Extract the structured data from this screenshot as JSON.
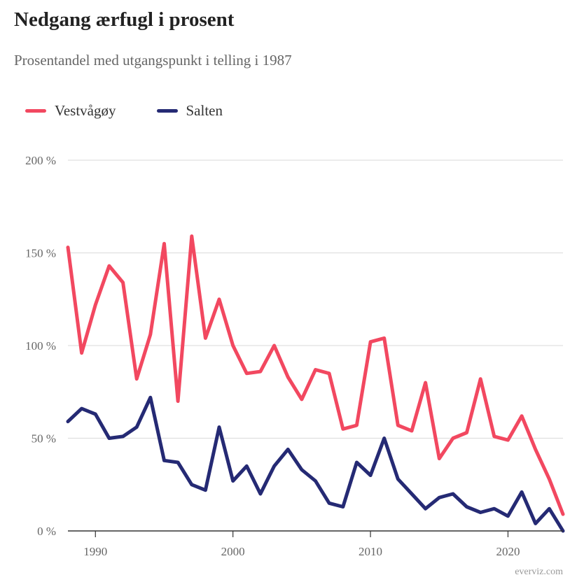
{
  "title": "Nedgang ærfugl i prosent",
  "subtitle": "Prosentandel med utgangspunkt i telling i 1987",
  "credit": "everviz.com",
  "colors": {
    "vestvagoy": "#f24860",
    "salten": "#252a74",
    "grid": "#e0e0e0",
    "axis": "#333333",
    "tick_text": "#666666"
  },
  "legend": {
    "items": [
      {
        "label": "Vestvågøy",
        "color": "#f24860"
      },
      {
        "label": "Salten",
        "color": "#252a74"
      }
    ],
    "placement": "top-left"
  },
  "chart_data": {
    "type": "line",
    "title": "Nedgang ærfugl i prosent",
    "subtitle": "Prosentandel med utgangspunkt i telling i 1987",
    "xlabel": "",
    "ylabel": "",
    "xlim": [
      1988,
      2024
    ],
    "ylim": [
      0,
      200
    ],
    "y_ticks": [
      0,
      50,
      100,
      150,
      200
    ],
    "y_tick_labels": [
      "0 %",
      "50 %",
      "100 %",
      "150 %",
      "200 %"
    ],
    "x_ticks": [
      1990,
      2000,
      2010,
      2020
    ],
    "x_tick_labels": [
      "1990",
      "2000",
      "2010",
      "2020"
    ],
    "grid": true,
    "x": [
      1988,
      1989,
      1990,
      1991,
      1992,
      1993,
      1994,
      1995,
      1996,
      1997,
      1998,
      1999,
      2000,
      2001,
      2002,
      2003,
      2004,
      2005,
      2006,
      2007,
      2008,
      2009,
      2010,
      2011,
      2012,
      2013,
      2014,
      2015,
      2016,
      2017,
      2018,
      2019,
      2020,
      2021,
      2022,
      2023,
      2024
    ],
    "series": [
      {
        "name": "Vestvågøy",
        "color": "#f24860",
        "values": [
          153,
          96,
          122,
          143,
          134,
          82,
          106,
          155,
          70,
          159,
          104,
          125,
          100,
          85,
          86,
          100,
          83,
          71,
          87,
          85,
          55,
          57,
          102,
          104,
          57,
          54,
          80,
          39,
          50,
          53,
          82,
          51,
          49,
          62,
          44,
          28,
          9
        ]
      },
      {
        "name": "Salten",
        "color": "#252a74",
        "values": [
          59,
          66,
          63,
          50,
          51,
          56,
          72,
          38,
          37,
          25,
          22,
          56,
          27,
          35,
          20,
          35,
          44,
          33,
          27,
          15,
          13,
          37,
          30,
          50,
          28,
          20,
          12,
          18,
          20,
          13,
          10,
          12,
          8,
          21,
          4,
          12,
          0
        ]
      }
    ]
  }
}
